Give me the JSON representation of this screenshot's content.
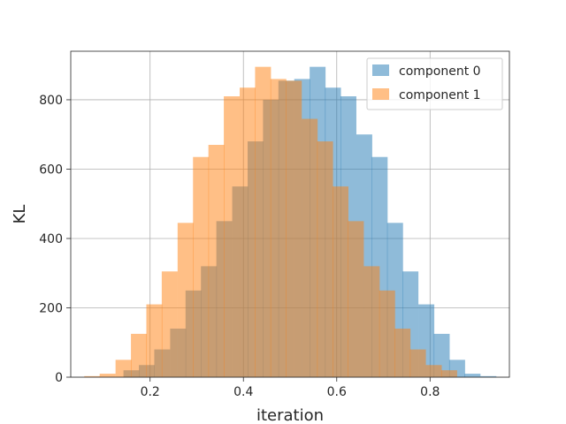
{
  "chart_data": {
    "type": "bar",
    "subtype": "overlapping-histogram",
    "title": "",
    "xlabel": "iteration",
    "ylabel": "KL",
    "xlim": [
      0.03,
      0.97
    ],
    "ylim": [
      0,
      940
    ],
    "x_ticks": [
      0.2,
      0.4,
      0.6,
      0.8
    ],
    "x_tick_labels": [
      "0.2",
      "0.4",
      "0.6",
      "0.8"
    ],
    "y_ticks": [
      0,
      200,
      400,
      600,
      800
    ],
    "y_tick_labels": [
      "0",
      "200",
      "400",
      "600",
      "800"
    ],
    "grid": true,
    "legend_position": "top-right",
    "bin_width": 0.0333,
    "series": [
      {
        "name": "component 0",
        "color": "#1f77b4",
        "alpha": 0.5,
        "bin_starts": [
          0.143,
          0.176,
          0.209,
          0.243,
          0.276,
          0.309,
          0.342,
          0.376,
          0.409,
          0.442,
          0.475,
          0.509,
          0.542,
          0.575,
          0.608,
          0.642,
          0.675,
          0.708,
          0.741,
          0.775,
          0.808,
          0.841,
          0.874,
          0.908
        ],
        "values": [
          20,
          35,
          80,
          140,
          250,
          320,
          450,
          550,
          680,
          800,
          855,
          860,
          895,
          835,
          810,
          700,
          635,
          445,
          305,
          210,
          125,
          50,
          10,
          3
        ]
      },
      {
        "name": "component 1",
        "color": "#ff7f0e",
        "alpha": 0.5,
        "bin_starts": [
          0.059,
          0.092,
          0.126,
          0.159,
          0.192,
          0.225,
          0.259,
          0.292,
          0.325,
          0.358,
          0.392,
          0.425,
          0.458,
          0.491,
          0.525,
          0.558,
          0.591,
          0.624,
          0.658,
          0.691,
          0.724,
          0.757,
          0.791,
          0.824
        ],
        "values": [
          3,
          10,
          50,
          125,
          210,
          305,
          445,
          635,
          670,
          810,
          835,
          895,
          860,
          855,
          745,
          680,
          550,
          450,
          320,
          250,
          140,
          80,
          35,
          20
        ]
      }
    ]
  }
}
